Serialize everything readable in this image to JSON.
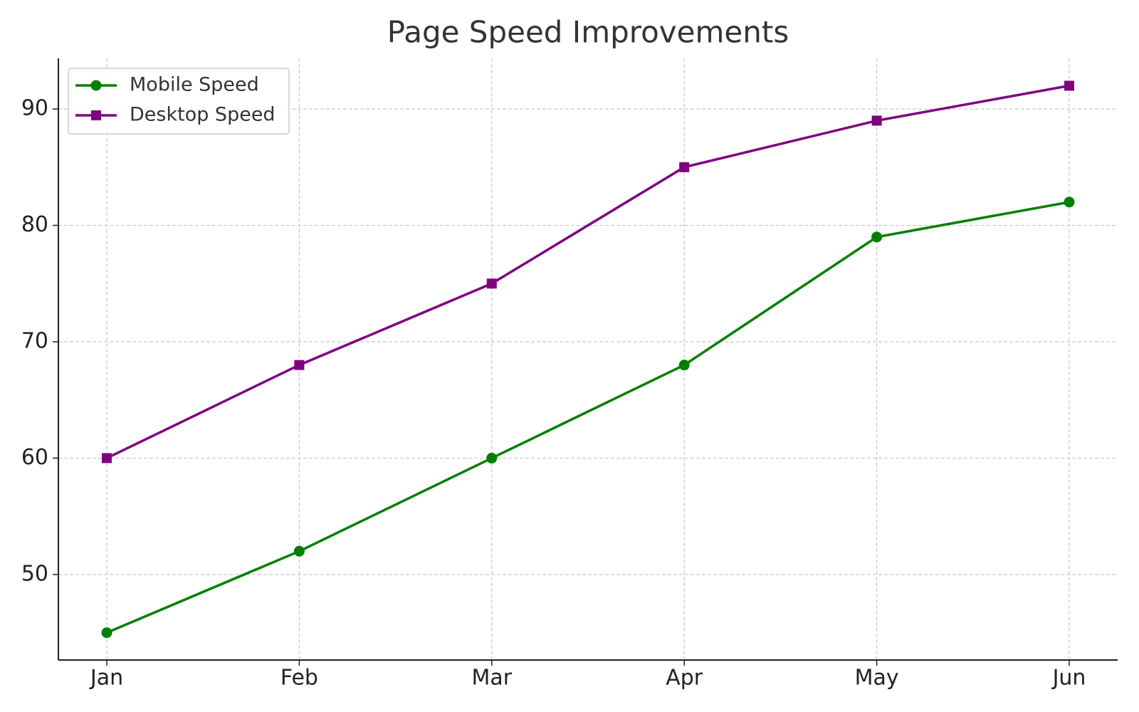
{
  "chart_data": {
    "type": "line",
    "title": "Page Speed Improvements",
    "categories": [
      "Jan",
      "Feb",
      "Mar",
      "Apr",
      "May",
      "Jun"
    ],
    "series": [
      {
        "name": "Mobile Speed",
        "color": "#008000",
        "marker": "circle",
        "values": [
          45,
          52,
          60,
          68,
          79,
          82
        ]
      },
      {
        "name": "Desktop Speed",
        "color": "#800080",
        "marker": "square",
        "values": [
          60,
          68,
          75,
          85,
          89,
          92
        ]
      }
    ],
    "ylim": [
      42.65,
      94.35
    ],
    "yticks": [
      50,
      60,
      70,
      80,
      90
    ],
    "grid": true,
    "legend": "upper left"
  }
}
